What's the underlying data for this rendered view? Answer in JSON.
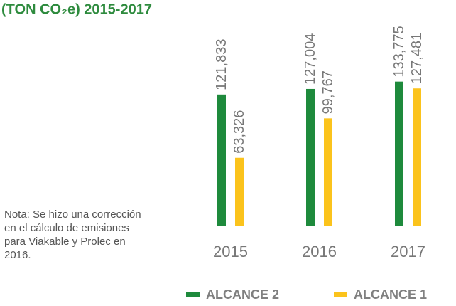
{
  "chart_data": {
    "type": "bar",
    "title": "(TON CO₂e) 2015-2017",
    "categories": [
      "2015",
      "2016",
      "2017"
    ],
    "series": [
      {
        "name": "ALCANCE 2",
        "color": "#1e8a3c",
        "values": [
          121833,
          127004,
          133775
        ],
        "value_labels": [
          "121,833",
          "127,004",
          "133,775"
        ]
      },
      {
        "name": "ALCANCE 1",
        "color": "#fbc31c",
        "values": [
          63326,
          99767,
          127481
        ],
        "value_labels": [
          "63,326",
          "99,767",
          "127,481"
        ]
      }
    ],
    "ylim": [
      0,
      150000
    ],
    "annotation": "Nota: Se hizo una corrección en el cálculo de emisiones para Viakable y Prolec en 2016."
  }
}
